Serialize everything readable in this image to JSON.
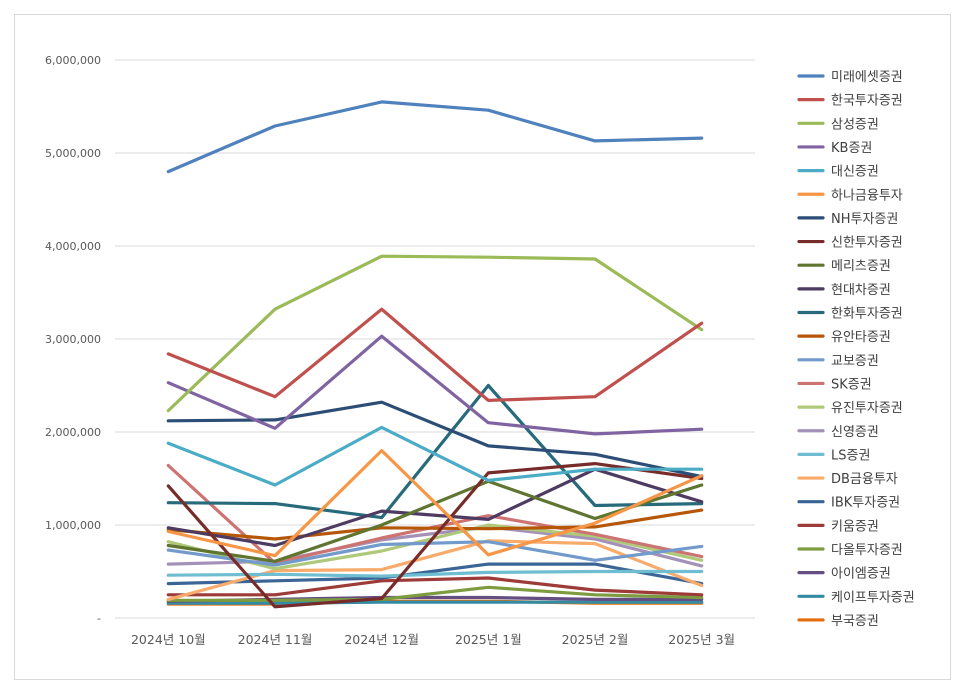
{
  "chart_data": {
    "type": "line",
    "title": "",
    "xlabel": "",
    "ylabel": "",
    "categories": [
      "2024년 10월",
      "2024년 11월",
      "2024년 12월",
      "2025년 1월",
      "2025년 2월",
      "2025년 3월"
    ],
    "ylim": [
      0,
      6000000
    ],
    "yticks": [
      0,
      1000000,
      2000000,
      3000000,
      4000000,
      5000000,
      6000000
    ],
    "ytick_labels": [
      "-",
      "1,000,000",
      "2,000,000",
      "3,000,000",
      "4,000,000",
      "5,000,000",
      "6,000,000"
    ],
    "grid": true,
    "legend_position": "right",
    "series": [
      {
        "name": "미래에셋증권",
        "color": "#4f81bd",
        "values": [
          4800000,
          5290000,
          5550000,
          5460000,
          5130000,
          5160000
        ]
      },
      {
        "name": "한국투자증권",
        "color": "#c0504d",
        "values": [
          2840000,
          2380000,
          3320000,
          2340000,
          2380000,
          3170000
        ]
      },
      {
        "name": "삼성증권",
        "color": "#9bbb59",
        "values": [
          2230000,
          3320000,
          3890000,
          3880000,
          3860000,
          3100000
        ]
      },
      {
        "name": "KB증권",
        "color": "#8064a2",
        "values": [
          2530000,
          2040000,
          3030000,
          2100000,
          1980000,
          2030000
        ]
      },
      {
        "name": "대신증권",
        "color": "#4bacc6",
        "values": [
          1880000,
          1430000,
          2050000,
          1480000,
          1600000,
          1600000
        ]
      },
      {
        "name": "하나금융투자",
        "color": "#f79646",
        "values": [
          930000,
          670000,
          1800000,
          680000,
          1020000,
          1530000
        ]
      },
      {
        "name": "NH투자증권",
        "color": "#2c4d75",
        "values": [
          2120000,
          2130000,
          2320000,
          1850000,
          1760000,
          1520000
        ]
      },
      {
        "name": "신한투자증권",
        "color": "#772c2a",
        "values": [
          1420000,
          120000,
          210000,
          1560000,
          1660000,
          1500000
        ]
      },
      {
        "name": "메리츠증권",
        "color": "#5f7530",
        "values": [
          780000,
          610000,
          1000000,
          1470000,
          1070000,
          1430000
        ]
      },
      {
        "name": "현대차증권",
        "color": "#4d3b62",
        "values": [
          970000,
          780000,
          1150000,
          1060000,
          1600000,
          1250000
        ]
      },
      {
        "name": "한화투자증권",
        "color": "#276a7c",
        "values": [
          1240000,
          1230000,
          1080000,
          2500000,
          1210000,
          1230000
        ]
      },
      {
        "name": "유안타증권",
        "color": "#b65708",
        "values": [
          950000,
          850000,
          970000,
          960000,
          980000,
          1160000
        ]
      },
      {
        "name": "교보증권",
        "color": "#729aca",
        "values": [
          730000,
          570000,
          790000,
          820000,
          620000,
          770000
        ]
      },
      {
        "name": "SK증권",
        "color": "#cd7371",
        "values": [
          1640000,
          590000,
          860000,
          1100000,
          900000,
          660000
        ]
      },
      {
        "name": "유진투자증권",
        "color": "#afc97a",
        "values": [
          820000,
          530000,
          720000,
          1000000,
          880000,
          620000
        ]
      },
      {
        "name": "신영증권",
        "color": "#a491b8",
        "values": [
          580000,
          610000,
          840000,
          980000,
          850000,
          560000
        ]
      },
      {
        "name": "LS증권",
        "color": "#6fbdd1",
        "values": [
          460000,
          470000,
          450000,
          490000,
          500000,
          500000
        ]
      },
      {
        "name": "DB금융투자",
        "color": "#f9ab6b",
        "values": [
          200000,
          510000,
          520000,
          830000,
          800000,
          350000
        ]
      },
      {
        "name": "IBK투자증권",
        "color": "#3a6596",
        "values": [
          370000,
          400000,
          430000,
          580000,
          580000,
          370000
        ]
      },
      {
        "name": "키움증권",
        "color": "#9c3b38",
        "values": [
          250000,
          250000,
          400000,
          430000,
          300000,
          250000
        ]
      },
      {
        "name": "다올투자증권",
        "color": "#7d9c40",
        "values": [
          190000,
          190000,
          200000,
          330000,
          250000,
          220000
        ]
      },
      {
        "name": "아이엠증권",
        "color": "#654e82",
        "values": [
          180000,
          200000,
          220000,
          220000,
          200000,
          200000
        ]
      },
      {
        "name": "케이프투자증권",
        "color": "#348ca4",
        "values": [
          160000,
          160000,
          170000,
          170000,
          170000,
          170000
        ]
      },
      {
        "name": "부국증권",
        "color": "#e46c0a",
        "values": [
          150000,
          150000,
          180000,
          180000,
          160000,
          160000
        ]
      }
    ]
  }
}
